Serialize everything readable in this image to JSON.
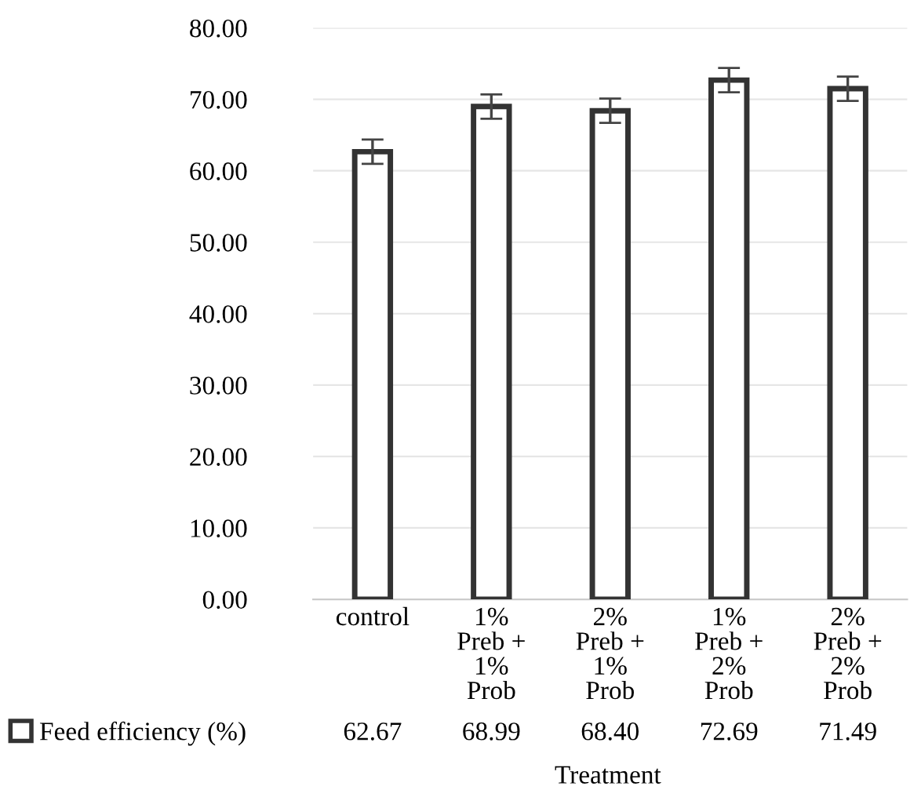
{
  "chart_data": {
    "type": "bar",
    "xlabel": "Treatment",
    "categories": [
      "control",
      "1%\nPreb +\n1%\nProb",
      "2%\nPreb +\n1%\nProb",
      "1%\nPreb +\n2%\nProb",
      "2%\nPreb +\n2%\nProb"
    ],
    "series": [
      {
        "name": "Feed efficiency (%)",
        "color": "#ffffff",
        "values": [
          62.67,
          68.99,
          68.4,
          72.69,
          71.49
        ],
        "errors": [
          1.7,
          1.7,
          1.7,
          1.7,
          1.7
        ],
        "value_labels": [
          "62.67",
          "68.99",
          "68.40",
          "72.69",
          "71.49"
        ]
      }
    ],
    "ylim": [
      0,
      80
    ],
    "yticks": [
      {
        "value": 0,
        "label": "0.00"
      },
      {
        "value": 10,
        "label": "10.00"
      },
      {
        "value": 20,
        "label": "20.00"
      },
      {
        "value": 30,
        "label": "30.00"
      },
      {
        "value": 40,
        "label": "40.00"
      },
      {
        "value": 50,
        "label": "50.00"
      },
      {
        "value": 60,
        "label": "60.00"
      },
      {
        "value": 70,
        "label": "70.00"
      },
      {
        "value": 80,
        "label": "80.00"
      }
    ],
    "grid": "y",
    "legend": "bottom left"
  }
}
